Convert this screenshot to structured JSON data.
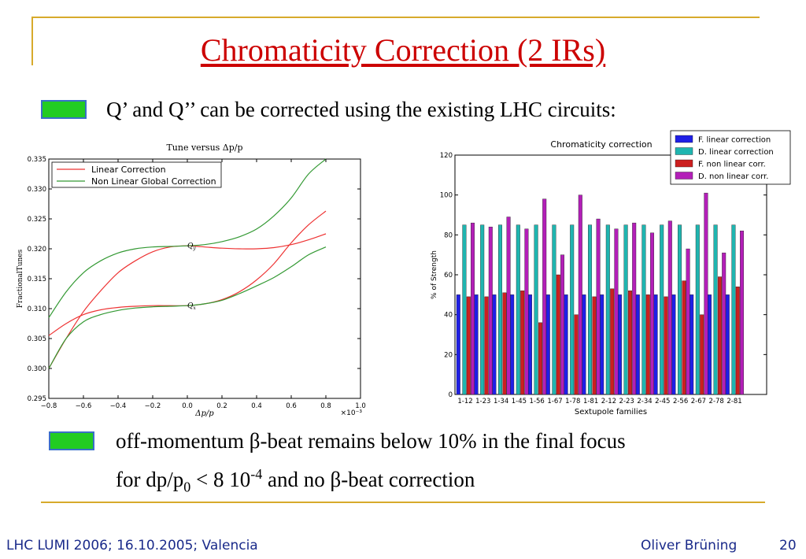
{
  "slide": {
    "title": "Chromaticity Correction (2 IRs)",
    "bullet1": "Q’ and Q’’ can be corrected using the existing LHC circuits:",
    "bullet2_line1_a": "off-momentum ",
    "bullet2_beta": "β",
    "bullet2_line1_b": "-beat remains below 10% in the final focus",
    "bullet2_line2_a": "for dp/p",
    "bullet2_sub": "0",
    "bullet2_line2_b": " < 8 10",
    "bullet2_sup": "-4",
    "bullet2_line2_c": " and no ",
    "bullet2_line2_d": "-beat correction",
    "footer_left": "LHC LUMI 2006; 16.10.2005; Valencia",
    "footer_author": "Oliver Brüning",
    "page_number": "20"
  },
  "colors": {
    "title": "#cc0000",
    "rule": "#d7aa2b",
    "bullet_fill": "#22cc22",
    "bullet_border": "#3a6fc8",
    "footer": "#1a2a8a"
  },
  "chart_data": [
    {
      "type": "line",
      "title": "Tune versus Δp/p",
      "xlabel": "Δp/p",
      "ylabel": "FractionalTunes",
      "x_multiplier": "×10⁻³",
      "xlim": [
        -0.8,
        1.0
      ],
      "ylim": [
        0.295,
        0.335
      ],
      "xticks": [
        -0.8,
        -0.6,
        -0.4,
        -0.2,
        0.0,
        0.2,
        0.4,
        0.6,
        0.8,
        1.0
      ],
      "xtick_labels": [
        "−0.8",
        "−0.6",
        "−0.4",
        "−0.2",
        "0.0",
        "0.2",
        "0.4",
        "0.6",
        "0.8",
        "1.0"
      ],
      "yticks": [
        0.295,
        0.3,
        0.305,
        0.31,
        0.315,
        0.32,
        0.325,
        0.33,
        0.335
      ],
      "ytick_labels": [
        "0.295",
        "0.300",
        "0.305",
        "0.310",
        "0.315",
        "0.320",
        "0.325",
        "0.330",
        "0.335"
      ],
      "legend_position": "top-left",
      "annotations": [
        {
          "text": "Qy",
          "x": 0.0,
          "y": 0.3205
        },
        {
          "text": "Qx",
          "x": 0.0,
          "y": 0.3105
        }
      ],
      "series": [
        {
          "name": "Linear Correction",
          "color": "#ee3333",
          "curves": [
            {
              "x": [
                -0.8,
                -0.7,
                -0.6,
                -0.5,
                -0.4,
                -0.3,
                -0.2,
                -0.1,
                0.0,
                0.1,
                0.2,
                0.3,
                0.4,
                0.5,
                0.6,
                0.7,
                0.8
              ],
              "y": [
                0.3,
                0.305,
                0.3095,
                0.313,
                0.316,
                0.318,
                0.3195,
                0.3203,
                0.3205,
                0.3203,
                0.3201,
                0.32,
                0.32,
                0.3202,
                0.3207,
                0.3215,
                0.3225
              ]
            },
            {
              "x": [
                -0.8,
                -0.7,
                -0.6,
                -0.5,
                -0.4,
                -0.3,
                -0.2,
                -0.1,
                0.0,
                0.1,
                0.2,
                0.3,
                0.4,
                0.5,
                0.6,
                0.7,
                0.8
              ],
              "y": [
                0.3055,
                0.3075,
                0.309,
                0.3098,
                0.3102,
                0.3104,
                0.3105,
                0.3105,
                0.3105,
                0.3108,
                0.3115,
                0.3128,
                0.3148,
                0.3175,
                0.321,
                0.324,
                0.3263
              ]
            }
          ]
        },
        {
          "name": "Non Linear Global Correction",
          "color": "#339933",
          "curves": [
            {
              "x": [
                -0.8,
                -0.7,
                -0.6,
                -0.5,
                -0.4,
                -0.3,
                -0.2,
                -0.1,
                0.0,
                0.1,
                0.2,
                0.3,
                0.4,
                0.5,
                0.6,
                0.7,
                0.8
              ],
              "y": [
                0.3085,
                0.3128,
                0.316,
                0.318,
                0.3193,
                0.32,
                0.3203,
                0.3204,
                0.3205,
                0.3207,
                0.3212,
                0.322,
                0.3233,
                0.3255,
                0.3285,
                0.3325,
                0.335
              ]
            },
            {
              "x": [
                -0.8,
                -0.7,
                -0.6,
                -0.5,
                -0.4,
                -0.3,
                -0.2,
                -0.1,
                0.0,
                0.1,
                0.2,
                0.3,
                0.4,
                0.5,
                0.6,
                0.7,
                0.8
              ],
              "y": [
                0.3,
                0.305,
                0.3078,
                0.309,
                0.3097,
                0.3101,
                0.3103,
                0.3104,
                0.3105,
                0.3108,
                0.3114,
                0.3125,
                0.3138,
                0.3152,
                0.317,
                0.319,
                0.3203
              ]
            }
          ]
        }
      ]
    },
    {
      "type": "bar",
      "title": "Chromaticity correction",
      "xlabel": "Sextupole families",
      "ylabel": "% of Strength",
      "ylim": [
        0,
        120
      ],
      "yticks": [
        0,
        20,
        40,
        60,
        80,
        100,
        120
      ],
      "legend_position": "top-right",
      "categories": [
        "1-12",
        "1-23",
        "1-34",
        "1-45",
        "1-56",
        "1-67",
        "1-78",
        "1-81",
        "2-12",
        "2-23",
        "2-34",
        "2-45",
        "2-56",
        "2-67",
        "2-78",
        "2-81"
      ],
      "series": [
        {
          "name": "F. linear correction",
          "color": "#1f1fe6",
          "values": [
            50,
            50,
            50,
            50,
            50,
            50,
            50,
            50,
            50,
            50,
            50,
            50,
            50,
            50,
            50,
            50
          ]
        },
        {
          "name": "D. linear correction",
          "color": "#1fb5b0",
          "values": [
            85,
            85,
            85,
            85,
            85,
            85,
            85,
            85,
            85,
            85,
            85,
            85,
            85,
            85,
            85,
            85
          ]
        },
        {
          "name": "F. non linear corr.",
          "color": "#cc1f1f",
          "values": [
            49,
            49,
            51,
            52,
            36,
            60,
            40,
            49,
            53,
            52,
            50,
            49,
            57,
            40,
            59,
            54
          ]
        },
        {
          "name": "D. non linear corr.",
          "color": "#b31fb8",
          "values": [
            86,
            84,
            89,
            83,
            98,
            70,
            100,
            88,
            83,
            86,
            81,
            87,
            73,
            101,
            71,
            82
          ]
        }
      ]
    }
  ]
}
